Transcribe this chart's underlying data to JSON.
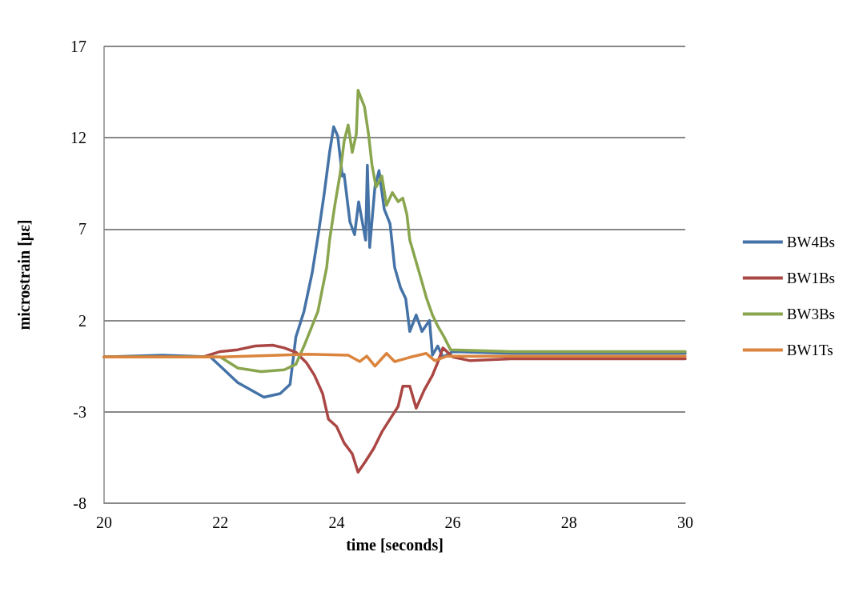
{
  "chart_data": {
    "type": "line",
    "xlabel": "time [seconds]",
    "ylabel": "microstrain [με]",
    "xlim": [
      20,
      30
    ],
    "xticks": [
      20,
      22,
      24,
      26,
      28,
      30
    ],
    "ylim": [
      -8,
      17
    ],
    "yticks": [
      -8,
      -3,
      2,
      7,
      12,
      17
    ],
    "grid": "y",
    "legend": "right",
    "marker": "none",
    "line_style": "solid",
    "series": [
      {
        "name": "BW4Bs",
        "color": "#4573a7",
        "x": [
          20,
          21,
          21.5,
          21.83,
          22.0,
          22.3,
          22.75,
          23.03,
          23.2,
          23.3,
          23.44,
          23.58,
          23.69,
          23.79,
          23.88,
          23.95,
          24.02,
          24.1,
          24.13,
          24.23,
          24.31,
          24.38,
          24.5,
          24.53,
          24.57,
          24.66,
          24.73,
          24.82,
          24.92,
          25.0,
          25.1,
          25.19,
          25.26,
          25.37,
          25.47,
          25.6,
          25.65,
          25.74,
          25.83,
          26.0,
          27,
          28,
          29,
          30
        ],
        "values": [
          0,
          0.1,
          0.05,
          0,
          -0.5,
          -1.4,
          -2.2,
          -2.0,
          -1.5,
          1.1,
          2.5,
          4.6,
          6.8,
          9.0,
          11.2,
          12.6,
          12.1,
          9.9,
          10.0,
          7.4,
          6.7,
          8.5,
          6.4,
          10.5,
          6.0,
          9.3,
          10.2,
          8.1,
          7.3,
          4.9,
          3.8,
          3.2,
          1.4,
          2.3,
          1.4,
          2.0,
          0.1,
          0.6,
          0,
          0.3,
          0.2,
          0.2,
          0.2,
          0.2
        ]
      },
      {
        "name": "BW1Bs",
        "color": "#aa4643",
        "x": [
          20,
          21,
          21.7,
          22.0,
          22.3,
          22.6,
          22.9,
          23.1,
          23.3,
          23.48,
          23.62,
          23.76,
          23.86,
          24.0,
          24.13,
          24.27,
          24.37,
          24.5,
          24.64,
          24.78,
          24.92,
          25.06,
          25.14,
          25.26,
          25.37,
          25.51,
          25.65,
          25.74,
          25.83,
          26.0,
          26.3,
          27,
          28,
          29,
          30
        ],
        "values": [
          0,
          0,
          0,
          0.3,
          0.4,
          0.6,
          0.65,
          0.5,
          0.26,
          -0.3,
          -1.0,
          -2.0,
          -3.4,
          -3.8,
          -4.7,
          -5.3,
          -6.3,
          -5.7,
          -5.0,
          -4.1,
          -3.4,
          -2.7,
          -1.6,
          -1.6,
          -2.8,
          -1.8,
          -1.0,
          -0.3,
          0.5,
          0,
          -0.2,
          -0.1,
          -0.1,
          -0.1,
          -0.1
        ]
      },
      {
        "name": "BW3Bs",
        "color": "#89a54e",
        "x": [
          20,
          21,
          22.0,
          22.3,
          22.7,
          23.1,
          23.3,
          23.44,
          23.68,
          23.76,
          23.83,
          23.88,
          23.97,
          24.06,
          24.13,
          24.2,
          24.27,
          24.34,
          24.37,
          24.43,
          24.48,
          24.55,
          24.61,
          24.68,
          24.78,
          24.86,
          24.96,
          25.06,
          25.14,
          25.21,
          25.26,
          25.37,
          25.47,
          25.55,
          25.65,
          25.74,
          25.85,
          25.96,
          27,
          28,
          29,
          30
        ],
        "values": [
          0,
          0,
          0,
          -0.6,
          -0.8,
          -0.7,
          -0.4,
          0.6,
          2.5,
          3.8,
          4.9,
          6.4,
          8.3,
          10.0,
          11.8,
          12.7,
          11.2,
          12.2,
          14.6,
          14.1,
          13.7,
          12.2,
          10.5,
          9.3,
          9.9,
          8.3,
          9.0,
          8.5,
          8.7,
          7.8,
          6.4,
          5.2,
          4.1,
          3.2,
          2.3,
          1.7,
          1.1,
          0.4,
          0.3,
          0.3,
          0.3,
          0.3
        ]
      },
      {
        "name": "BW1Ts",
        "color": "#db843d",
        "x": [
          20,
          22,
          23,
          23.5,
          24.2,
          24.4,
          24.52,
          24.66,
          24.86,
          25.0,
          25.28,
          25.54,
          25.69,
          25.9,
          27,
          30
        ],
        "values": [
          0,
          0,
          0.1,
          0.15,
          0.1,
          -0.25,
          0.05,
          -0.5,
          0.2,
          -0.25,
          0,
          0.2,
          -0.2,
          0.05,
          0.05,
          0.05
        ]
      }
    ]
  }
}
